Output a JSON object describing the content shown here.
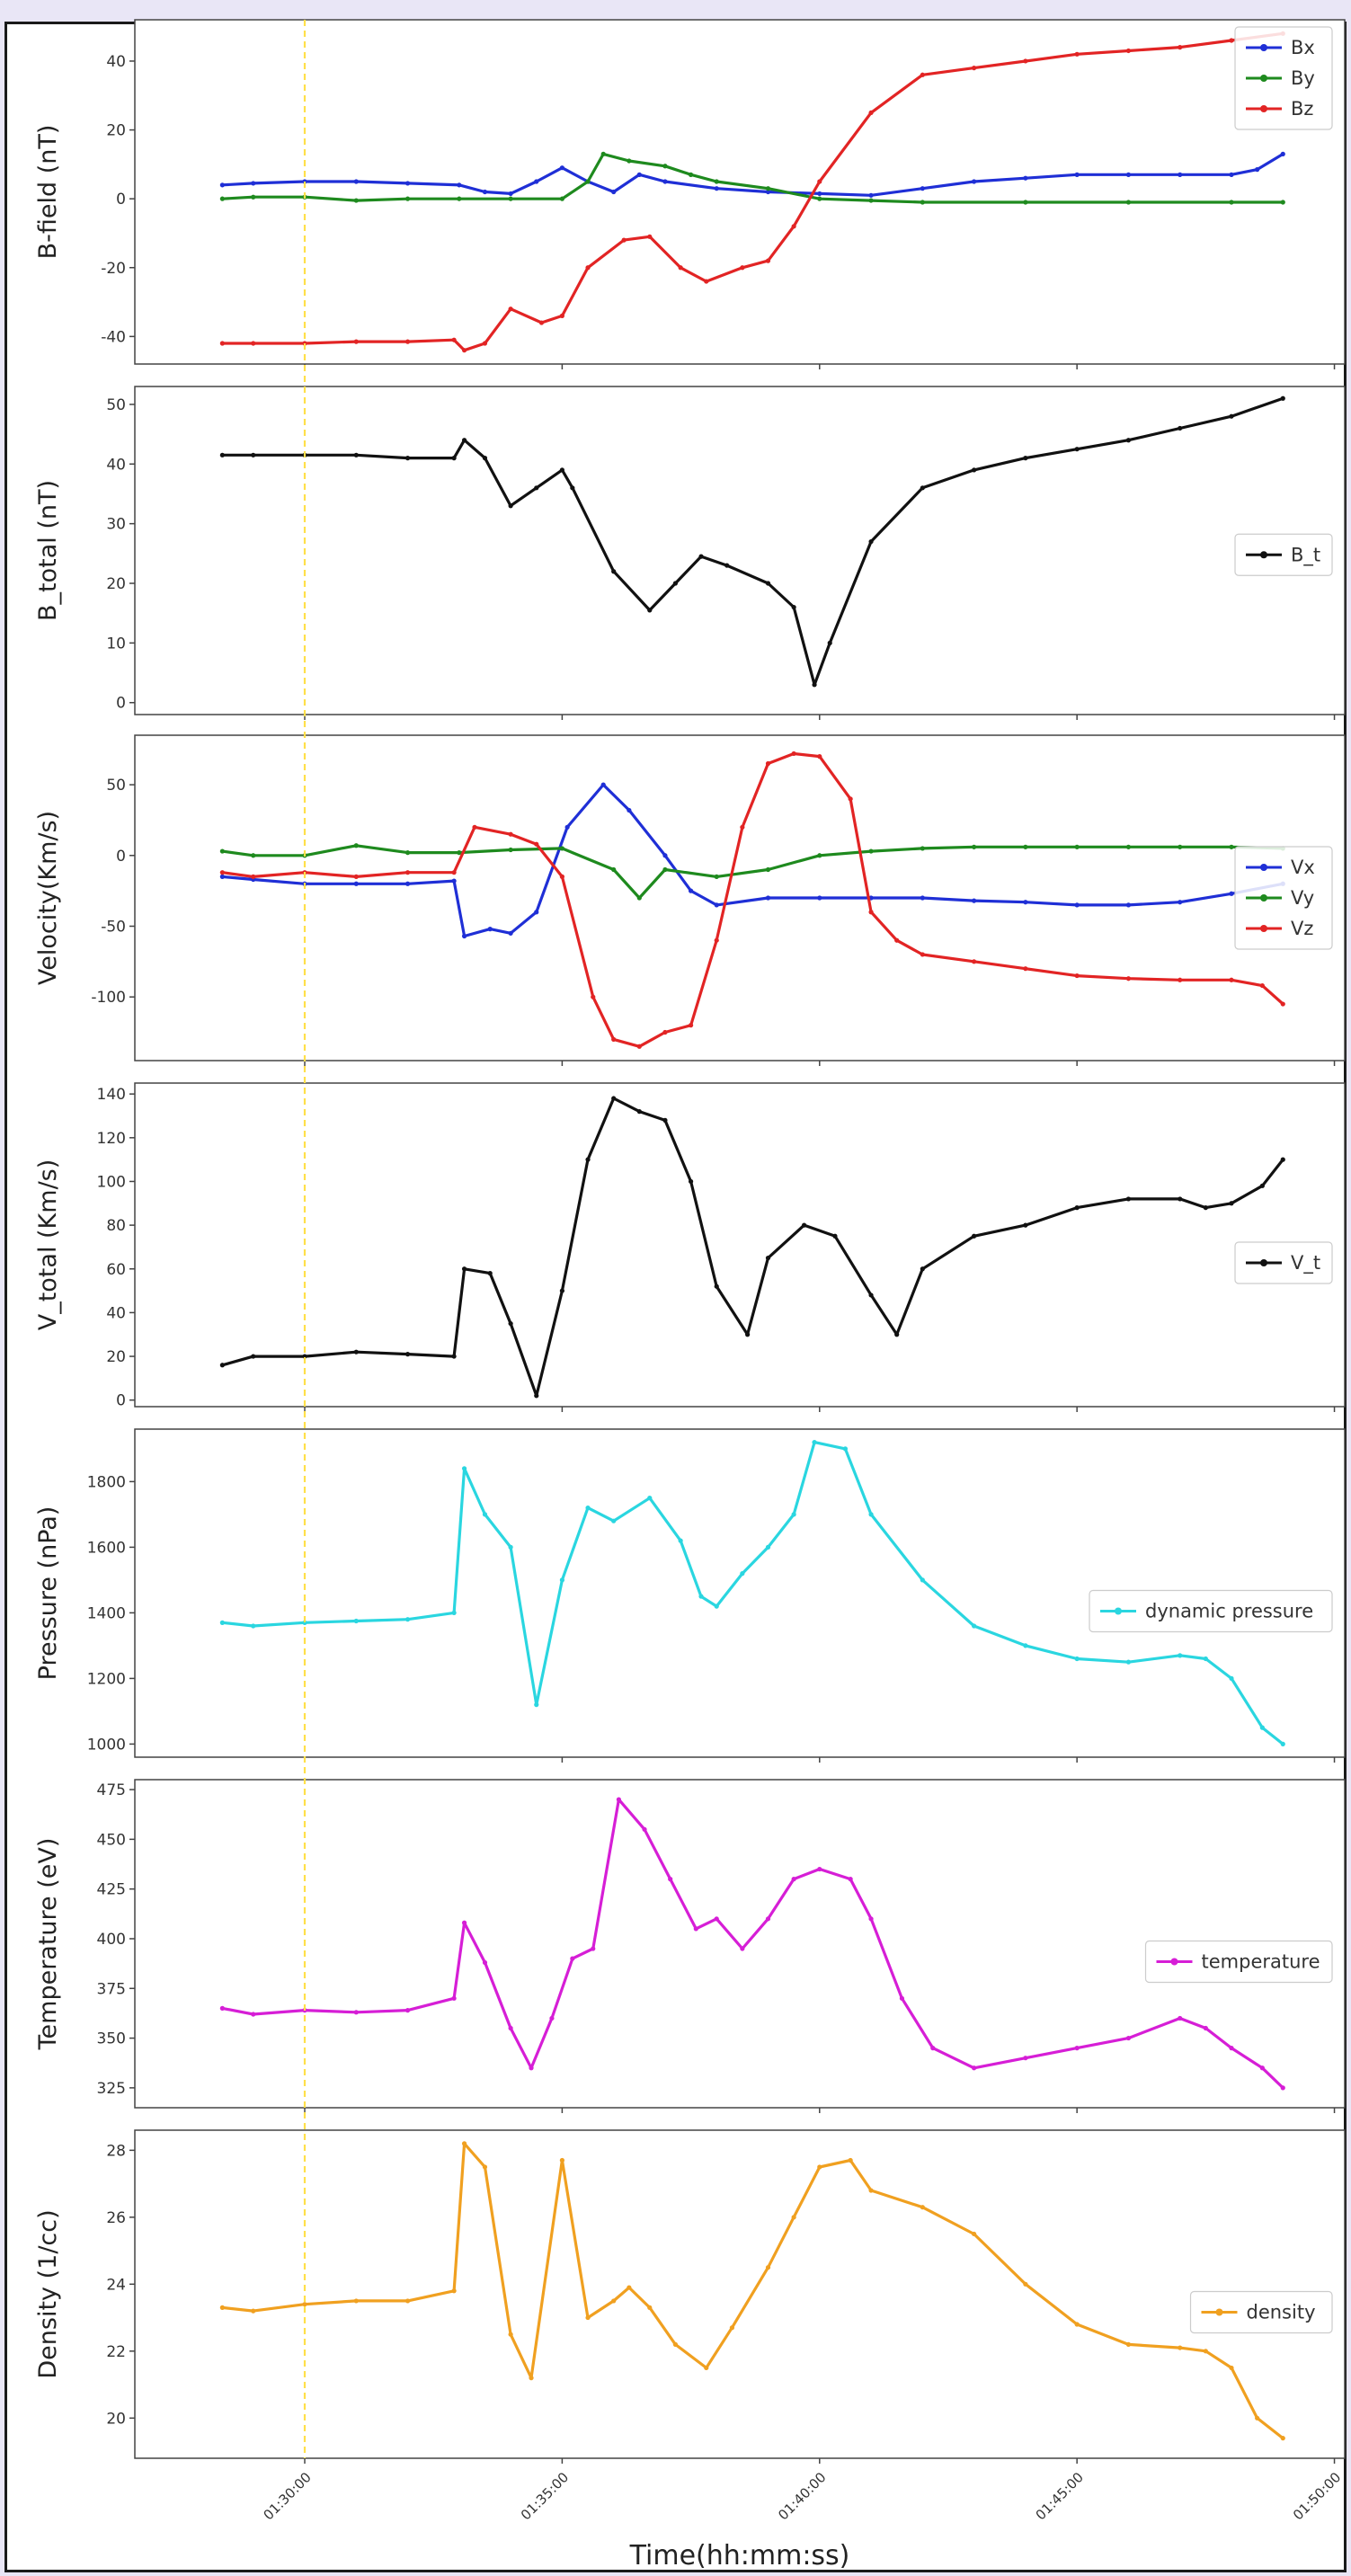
{
  "figure": {
    "x_axis_label": "Time(hh:mm:ss)",
    "x_tick_labels": [
      "01:30:00",
      "01:35:00",
      "01:40:00",
      "01:45:00",
      "01:50:00"
    ],
    "marker_line_color": "#ffe04a"
  },
  "chart_data": [
    {
      "type": "line",
      "ylabel": "B-field (nT)",
      "ylim": [
        -48,
        52
      ],
      "yticks": [
        -40,
        -20,
        0,
        20,
        40
      ],
      "legend_placement": "top-right",
      "series": [
        {
          "name": "Bx",
          "color": "#1f2fd6",
          "x": [
            88.4,
            89,
            90,
            91,
            92,
            93,
            93.5,
            94,
            94.5,
            95,
            95.5,
            96,
            96.5,
            97,
            98,
            99,
            100,
            101,
            102,
            103,
            104,
            105,
            106,
            107,
            108,
            108.5,
            109
          ],
          "y": [
            4,
            4.5,
            5,
            5,
            4.5,
            4,
            2,
            1.5,
            5,
            9,
            5,
            2,
            7,
            5,
            3,
            2,
            1.5,
            1,
            3,
            5,
            6,
            7,
            7,
            7,
            7,
            8.5,
            13
          ]
        },
        {
          "name": "By",
          "color": "#1e8a1e",
          "x": [
            88.4,
            89,
            90,
            91,
            92,
            93,
            94,
            95,
            95.5,
            95.8,
            96.3,
            97,
            97.5,
            98,
            99,
            100,
            101,
            102,
            104,
            106,
            108,
            109
          ],
          "y": [
            0,
            0.5,
            0.5,
            -0.5,
            0,
            0,
            0,
            0,
            5,
            13,
            11,
            9.5,
            7,
            5,
            3,
            0,
            -0.5,
            -1,
            -1,
            -1,
            -1,
            -1
          ]
        },
        {
          "name": "Bz",
          "color": "#e22424",
          "x": [
            88.4,
            89,
            90,
            91,
            92,
            92.9,
            93.1,
            93.5,
            94,
            94.6,
            95,
            95.5,
            96.2,
            96.7,
            97.3,
            97.8,
            98.5,
            99,
            99.5,
            100,
            101,
            102,
            103,
            104,
            105,
            106,
            107,
            108,
            109
          ],
          "y": [
            -42,
            -42,
            -42,
            -41.5,
            -41.5,
            -41,
            -44,
            -42,
            -32,
            -36,
            -34,
            -20,
            -12,
            -11,
            -20,
            -24,
            -20,
            -18,
            -8,
            5,
            25,
            36,
            38,
            40,
            42,
            43,
            44,
            46,
            48
          ]
        }
      ]
    },
    {
      "type": "line",
      "ylabel": "B_total (nT)",
      "ylim": [
        -2,
        53
      ],
      "yticks": [
        0,
        10,
        20,
        30,
        40,
        50
      ],
      "legend_placement": "center-right",
      "series": [
        {
          "name": "B_t",
          "color": "#111111",
          "x": [
            88.4,
            89,
            90,
            91,
            92,
            92.9,
            93.1,
            93.5,
            94,
            94.5,
            95,
            95.2,
            96,
            96.7,
            97.2,
            97.7,
            98.2,
            99,
            99.5,
            99.9,
            100.2,
            101,
            102,
            103,
            104,
            105,
            106,
            107,
            108,
            109
          ],
          "y": [
            41.5,
            41.5,
            41.5,
            41.5,
            41,
            41,
            44,
            41,
            33,
            36,
            39,
            36,
            22,
            15.5,
            20,
            24.5,
            23,
            20,
            16,
            3,
            10,
            27,
            36,
            39,
            41,
            42.5,
            44,
            46,
            48,
            51
          ]
        }
      ]
    },
    {
      "type": "line",
      "ylabel": "Velocity(Km/s)",
      "ylim": [
        -145,
        85
      ],
      "yticks": [
        -100,
        -50,
        0,
        50
      ],
      "legend_placement": "right",
      "series": [
        {
          "name": "Vx",
          "color": "#1f2fd6",
          "x": [
            88.4,
            89,
            90,
            91,
            92,
            92.9,
            93.1,
            93.6,
            94,
            94.5,
            95.1,
            95.8,
            96.3,
            97,
            97.5,
            98,
            99,
            100,
            101,
            102,
            103,
            104,
            105,
            106,
            107,
            108,
            109
          ],
          "y": [
            -15,
            -17,
            -20,
            -20,
            -20,
            -18,
            -57,
            -52,
            -55,
            -40,
            20,
            50,
            32,
            0,
            -25,
            -35,
            -30,
            -30,
            -30,
            -30,
            -32,
            -33,
            -35,
            -35,
            -33,
            -27,
            -20
          ]
        },
        {
          "name": "Vy",
          "color": "#1e8a1e",
          "x": [
            88.4,
            89,
            90,
            91,
            92,
            93,
            94,
            95,
            96,
            96.5,
            97,
            98,
            99,
            100,
            101,
            102,
            103,
            104,
            105,
            106,
            107,
            108,
            109
          ],
          "y": [
            3,
            0,
            0,
            7,
            2,
            2,
            4,
            5,
            -10,
            -30,
            -10,
            -15,
            -10,
            0,
            3,
            5,
            6,
            6,
            6,
            6,
            6,
            6,
            5
          ]
        },
        {
          "name": "Vz",
          "color": "#e22424",
          "x": [
            88.4,
            89,
            90,
            91,
            92,
            92.9,
            93.3,
            94,
            94.5,
            95,
            95.6,
            96,
            96.5,
            97,
            97.5,
            98,
            98.5,
            99,
            99.5,
            100,
            100.6,
            101,
            101.5,
            102,
            103,
            104,
            105,
            106,
            107,
            108,
            108.6,
            109
          ],
          "y": [
            -12,
            -15,
            -12,
            -15,
            -12,
            -12,
            20,
            15,
            8,
            -15,
            -100,
            -130,
            -135,
            -125,
            -120,
            -60,
            20,
            65,
            72,
            70,
            40,
            -40,
            -60,
            -70,
            -75,
            -80,
            -85,
            -87,
            -88,
            -88,
            -92,
            -105
          ]
        }
      ]
    },
    {
      "type": "line",
      "ylabel": "V_total (Km/s)",
      "ylim": [
        -3,
        145
      ],
      "yticks": [
        0,
        20,
        40,
        60,
        80,
        100,
        120,
        140
      ],
      "legend_placement": "right",
      "series": [
        {
          "name": "V_t",
          "color": "#111111",
          "x": [
            88.4,
            89,
            90,
            91,
            92,
            92.9,
            93.1,
            93.6,
            94,
            94.5,
            95,
            95.5,
            96,
            96.5,
            97,
            97.5,
            98,
            98.6,
            99,
            99.7,
            100.3,
            101,
            101.5,
            102,
            103,
            104,
            105,
            106,
            107,
            107.5,
            108,
            108.6,
            109
          ],
          "y": [
            16,
            20,
            20,
            22,
            21,
            20,
            60,
            58,
            35,
            2,
            50,
            110,
            138,
            132,
            128,
            100,
            52,
            30,
            65,
            80,
            75,
            48,
            30,
            60,
            75,
            80,
            88,
            92,
            92,
            88,
            90,
            98,
            110
          ]
        }
      ]
    },
    {
      "type": "line",
      "ylabel": "Pressure (nPa)",
      "ylim": [
        960,
        1960
      ],
      "yticks": [
        1000,
        1200,
        1400,
        1600,
        1800
      ],
      "legend_placement": "right",
      "series": [
        {
          "name": "dynamic pressure",
          "color": "#2ad6e0",
          "x": [
            88.4,
            89,
            90,
            91,
            92,
            92.9,
            93.1,
            93.5,
            94,
            94.5,
            95,
            95.5,
            96,
            96.7,
            97.3,
            97.7,
            98,
            98.5,
            99,
            99.5,
            99.9,
            100.5,
            101,
            102,
            103,
            104,
            105,
            106,
            107,
            107.5,
            108,
            108.6,
            109
          ],
          "y": [
            1370,
            1360,
            1370,
            1375,
            1380,
            1400,
            1840,
            1700,
            1600,
            1120,
            1500,
            1720,
            1680,
            1750,
            1620,
            1450,
            1420,
            1520,
            1600,
            1700,
            1920,
            1900,
            1700,
            1500,
            1360,
            1300,
            1260,
            1250,
            1270,
            1260,
            1200,
            1050,
            1000
          ]
        }
      ]
    },
    {
      "type": "line",
      "ylabel": "Temperature (eV)",
      "ylim": [
        315,
        480
      ],
      "yticks": [
        325,
        350,
        375,
        400,
        425,
        450,
        475
      ],
      "legend_placement": "right",
      "series": [
        {
          "name": "temperature",
          "color": "#d61ed6",
          "x": [
            88.4,
            89,
            90,
            91,
            92,
            92.9,
            93.1,
            93.5,
            94,
            94.4,
            94.8,
            95.2,
            95.6,
            96.1,
            96.6,
            97.1,
            97.6,
            98,
            98.5,
            99,
            99.5,
            100,
            100.6,
            101,
            101.6,
            102.2,
            103,
            104,
            105,
            106,
            107,
            107.5,
            108,
            108.6,
            109
          ],
          "y": [
            365,
            362,
            364,
            363,
            364,
            370,
            408,
            388,
            355,
            335,
            360,
            390,
            395,
            470,
            455,
            430,
            405,
            410,
            395,
            410,
            430,
            435,
            430,
            410,
            370,
            345,
            335,
            340,
            345,
            350,
            360,
            355,
            345,
            335,
            325
          ]
        }
      ]
    },
    {
      "type": "line",
      "ylabel": "Density (1/cc)",
      "ylim": [
        18.8,
        28.6
      ],
      "yticks": [
        20,
        22,
        24,
        26,
        28
      ],
      "legend_placement": "right",
      "series": [
        {
          "name": "density",
          "color": "#f0a020",
          "x": [
            88.4,
            89,
            90,
            91,
            92,
            92.9,
            93.1,
            93.5,
            94,
            94.4,
            95,
            95.5,
            96,
            96.3,
            96.7,
            97.2,
            97.8,
            98.3,
            99,
            99.5,
            100,
            100.6,
            101,
            102,
            103,
            104,
            105,
            106,
            107,
            107.5,
            108,
            108.5,
            109
          ],
          "y": [
            23.3,
            23.2,
            23.4,
            23.5,
            23.5,
            23.8,
            28.2,
            27.5,
            22.5,
            21.2,
            27.7,
            23,
            23.5,
            23.9,
            23.3,
            22.2,
            21.5,
            22.7,
            24.5,
            26,
            27.5,
            27.7,
            26.8,
            26.3,
            25.5,
            24,
            22.8,
            22.2,
            22.1,
            22,
            21.5,
            20,
            19.4
          ]
        }
      ]
    }
  ]
}
